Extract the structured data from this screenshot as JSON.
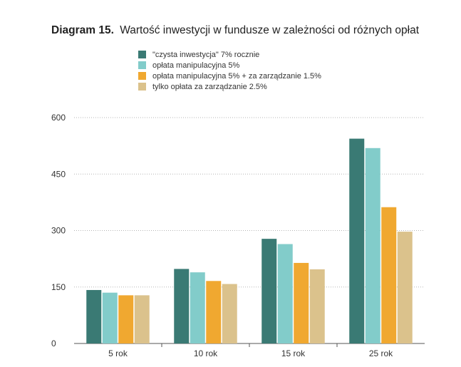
{
  "header": {
    "prefix": "Diagram 15.",
    "title": "Wartość inwestycji w fundusze w zależności od różnych opłat"
  },
  "chart_data": {
    "type": "bar",
    "categories": [
      "5 rok",
      "10 rok",
      "15 rok",
      "25 rok"
    ],
    "series": [
      {
        "name": "\"czysta inwestycja\" 7% rocznie",
        "color": "#3a7a74",
        "values": [
          142,
          198,
          278,
          544
        ]
      },
      {
        "name": "opłata manipulacyjna 5%",
        "color": "#82ccca",
        "values": [
          135,
          189,
          264,
          519
        ]
      },
      {
        "name": "opłata manipulacyjna 5% + za zarządzanie 1.5%",
        "color": "#f0a830",
        "values": [
          128,
          166,
          214,
          362
        ]
      },
      {
        "name": "tylko opłata za zarządzanie 2.5%",
        "color": "#dbc28c",
        "values": [
          128,
          158,
          197,
          297
        ]
      }
    ],
    "ylim": [
      0,
      600
    ],
    "yticks": [
      0,
      150,
      300,
      450,
      600
    ],
    "grid": true,
    "legend_position": "top-left"
  }
}
